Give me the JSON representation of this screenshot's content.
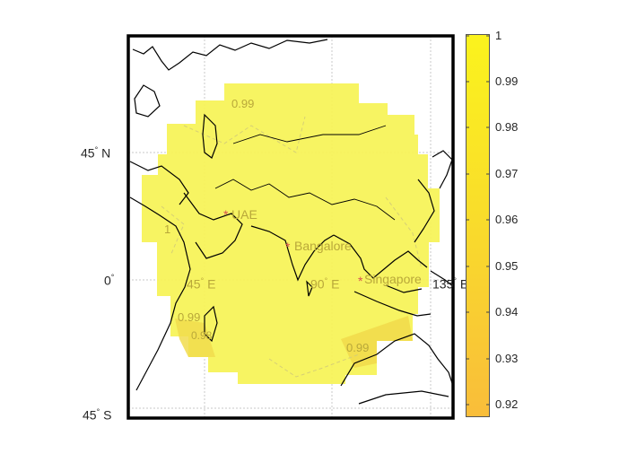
{
  "map": {
    "lat_labels": [
      {
        "deg": "45",
        "hem": "N"
      },
      {
        "deg": "0",
        "hem": ""
      },
      {
        "deg": "45",
        "hem": "S"
      }
    ],
    "lon_labels": [
      {
        "deg": "45",
        "hem": "E"
      },
      {
        "deg": "90",
        "hem": "E"
      },
      {
        "deg": "135",
        "hem": "E"
      }
    ],
    "contour_labels": [
      "0.99",
      "1",
      "0.99",
      "0.98",
      "0.99"
    ],
    "cities": [
      {
        "name": "UAE"
      },
      {
        "name": "Bangalore"
      },
      {
        "name": "Singapore"
      }
    ],
    "colors": {
      "field_main": "#f7f35a",
      "field_low": "#f0d84a",
      "city_marker": "#d9534f",
      "label_text": "#b9a83a",
      "frame": "#000000",
      "grid": "#bdbdbd"
    }
  },
  "colorbar": {
    "ticks": [
      "1",
      "0.99",
      "0.98",
      "0.97",
      "0.96",
      "0.95",
      "0.94",
      "0.93",
      "0.92"
    ],
    "colors": {
      "top": "#fbf31d",
      "bottom": "#f9bd3a"
    }
  }
}
